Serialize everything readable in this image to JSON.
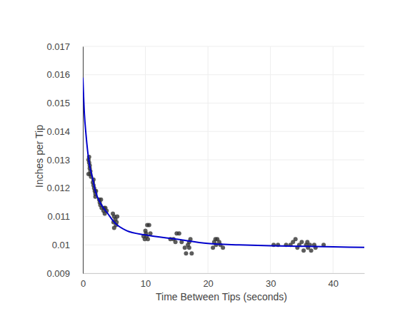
{
  "chart_data": {
    "type": "scatter",
    "x_label": "Time Between Tips (seconds)",
    "y_label": "Inches per Tip",
    "xlim": [
      0,
      45
    ],
    "xticks": [
      0,
      10,
      20,
      30,
      40
    ],
    "ylim": [
      0.009,
      0.017
    ],
    "yticks": [
      0.009,
      0.01,
      0.011,
      0.012,
      0.013,
      0.014,
      0.015,
      0.016,
      0.017
    ],
    "grid": true,
    "series": [
      {
        "type": "scatter",
        "color": "#333333",
        "marker": "circle",
        "x": [
          0.9,
          1.0,
          1.0,
          1.1,
          1.1,
          1.2,
          1.2,
          1.3,
          0.9,
          1.6,
          1.7,
          1.8,
          1.9,
          2.0,
          2.1,
          1.7,
          2.0,
          2.6,
          2.7,
          2.8,
          3.0,
          2.9,
          3.3,
          3.5,
          3.6,
          3.8,
          3.4,
          4.8,
          5.0,
          5.2,
          5.4,
          5.0,
          5.3,
          5.5,
          4.9,
          9.7,
          10.0,
          10.1,
          10.3,
          10.6,
          10.4,
          10.8,
          9.9,
          10.2,
          14.0,
          14.5,
          15.0,
          15.4,
          15.8,
          14.8,
          16.3,
          16.5,
          16.8,
          17.0,
          17.2,
          17.4,
          17.0,
          20.8,
          21.0,
          21.2,
          21.3,
          21.5,
          22.0,
          22.4,
          21.8,
          30.5,
          31.2,
          32.5,
          33.2,
          33.6,
          34.0,
          34.3,
          34.6,
          35.0,
          35.3,
          35.7,
          36.0,
          36.3,
          36.5,
          37.0,
          37.2,
          38.5,
          35.9
        ],
        "values": [
          0.0125,
          0.0131,
          0.0129,
          0.0128,
          0.0127,
          0.0126,
          0.0125,
          0.0124,
          0.013,
          0.0122,
          0.0121,
          0.012,
          0.0119,
          0.0118,
          0.0119,
          0.0123,
          0.0117,
          0.0116,
          0.0115,
          0.0114,
          0.0113,
          0.0116,
          0.0112,
          0.0111,
          0.0113,
          0.0112,
          0.0113,
          0.0111,
          0.011,
          0.0109,
          0.0108,
          0.0106,
          0.0107,
          0.011,
          0.0108,
          0.0103,
          0.0105,
          0.0104,
          0.0107,
          0.0107,
          0.0102,
          0.0104,
          0.0102,
          0.0103,
          0.0102,
          0.0102,
          0.0104,
          0.0104,
          0.0101,
          0.0101,
          0.0099,
          0.0097,
          0.01,
          0.0099,
          0.0102,
          0.0097,
          0.0101,
          0.0099,
          0.0101,
          0.0102,
          0.01,
          0.0102,
          0.01,
          0.0099,
          0.0101,
          0.01,
          0.01,
          0.01,
          0.01,
          0.0101,
          0.0102,
          0.0099,
          0.01,
          0.0101,
          0.0098,
          0.01,
          0.0099,
          0.01,
          0.0098,
          0.01,
          0.0099,
          0.01,
          0.0101
        ]
      },
      {
        "type": "line",
        "color": "#0000cc",
        "line_style": "solid",
        "x": [
          0,
          0.25,
          0.5,
          1,
          1.5,
          2,
          3,
          4,
          5,
          7,
          10,
          15,
          20,
          25,
          30,
          35,
          40,
          45
        ],
        "values": [
          0.0159,
          0.0146,
          0.0139,
          0.0129,
          0.0124,
          0.0119,
          0.0114,
          0.0111,
          0.0108,
          0.0105,
          0.01035,
          0.0102,
          0.01005,
          0.01,
          0.00997,
          0.00995,
          0.00993,
          0.00991
        ]
      }
    ]
  }
}
